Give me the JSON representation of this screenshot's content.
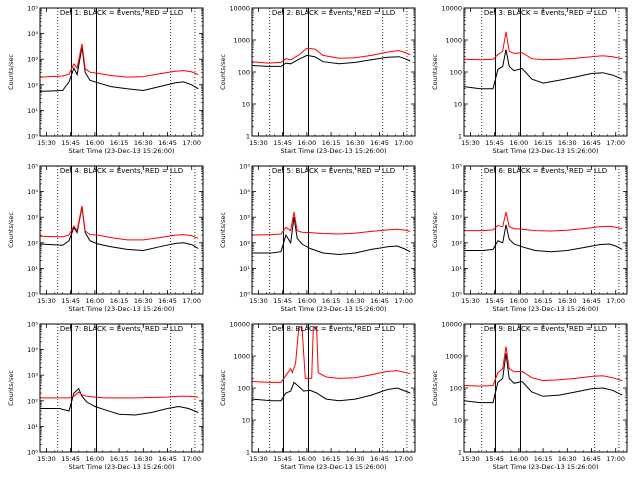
{
  "figure": {
    "xlabel": "Start Time (23-Dec-13 15:26:00)",
    "ylabel": "Counts/sec",
    "x_tick_labels": [
      "15:30",
      "15:45",
      "16:00",
      "16:15",
      "16:30",
      "16:45",
      "17:00"
    ],
    "x_tick_minutes": [
      30,
      45,
      60,
      75,
      90,
      105,
      120
    ],
    "x_range_minutes": [
      26,
      127
    ],
    "marker_lines_minutes": {
      "dotted": [
        37,
        107,
        122
      ],
      "solid": [
        45.5,
        61
      ]
    },
    "colors": {
      "events": "#000000",
      "lld": "#ff0000"
    }
  },
  "chart_data": [
    {
      "type": "line",
      "title": "Det 1: BLACK = Events, RED = LLD",
      "xlabel": "Start Time (23-Dec-13 15:26:00)",
      "ylabel": "Counts/sec",
      "y_scale": "log",
      "ylim": [
        1,
        100000
      ],
      "y_tick_labels": [
        "10⁰",
        "10¹",
        "10²",
        "10³",
        "10⁴",
        "10⁵"
      ],
      "series": [
        {
          "name": "Events",
          "color": "#000000",
          "x": [
            26,
            40,
            44,
            47,
            49,
            52,
            54,
            57,
            62,
            70,
            80,
            90,
            100,
            110,
            115,
            120,
            124
          ],
          "y": [
            55,
            60,
            130,
            450,
            250,
            3000,
            300,
            150,
            120,
            85,
            70,
            60,
            85,
            120,
            130,
            100,
            70
          ]
        },
        {
          "name": "LLD",
          "color": "#ff0000",
          "x": [
            26,
            40,
            44,
            47,
            49,
            52,
            54,
            57,
            62,
            70,
            80,
            90,
            100,
            110,
            115,
            120,
            124
          ],
          "y": [
            200,
            220,
            260,
            650,
            450,
            4000,
            420,
            310,
            280,
            230,
            200,
            210,
            270,
            340,
            360,
            320,
            250
          ]
        }
      ]
    },
    {
      "type": "line",
      "title": "Det 2: BLACK = Events, RED = LLD",
      "xlabel": "Start Time (23-Dec-13 15:26:00)",
      "ylabel": "Counts/sec",
      "y_scale": "log",
      "ylim": [
        1,
        10000
      ],
      "y_tick_labels": [
        "1",
        "10",
        "100",
        "1000",
        "10000"
      ],
      "series": [
        {
          "name": "Events",
          "color": "#000000",
          "x": [
            26,
            36,
            44,
            47,
            50,
            55,
            60,
            65,
            70,
            80,
            90,
            100,
            110,
            117,
            120,
            124
          ],
          "y": [
            160,
            150,
            150,
            190,
            180,
            250,
            330,
            300,
            210,
            180,
            200,
            240,
            290,
            300,
            270,
            220
          ]
        },
        {
          "name": "LLD",
          "color": "#ff0000",
          "x": [
            26,
            36,
            44,
            47,
            50,
            55,
            60,
            65,
            70,
            80,
            90,
            100,
            110,
            117,
            120,
            124
          ],
          "y": [
            210,
            190,
            200,
            260,
            240,
            340,
            550,
            520,
            330,
            270,
            280,
            330,
            420,
            470,
            420,
            350
          ]
        }
      ]
    },
    {
      "type": "line",
      "title": "Det 3: BLACK = Events, RED = LLD",
      "xlabel": "Start Time (23-Dec-13 15:26:00)",
      "ylabel": "Counts/sec",
      "y_scale": "log",
      "ylim": [
        1,
        10000
      ],
      "y_tick_labels": [
        "1",
        "10",
        "100",
        "1000",
        "10000"
      ],
      "series": [
        {
          "name": "Events",
          "color": "#000000",
          "x": [
            26,
            36,
            44,
            47,
            50,
            52,
            54,
            57,
            62,
            68,
            75,
            85,
            95,
            105,
            112,
            118,
            124
          ],
          "y": [
            35,
            30,
            30,
            120,
            150,
            500,
            150,
            110,
            130,
            60,
            45,
            55,
            70,
            90,
            95,
            80,
            60
          ]
        },
        {
          "name": "LLD",
          "color": "#ff0000",
          "x": [
            26,
            36,
            44,
            47,
            50,
            52,
            54,
            57,
            62,
            68,
            75,
            85,
            95,
            105,
            112,
            118,
            124
          ],
          "y": [
            250,
            240,
            250,
            350,
            450,
            1800,
            450,
            380,
            400,
            260,
            240,
            250,
            270,
            300,
            320,
            300,
            260
          ]
        }
      ]
    },
    {
      "type": "line",
      "title": "Det 4: BLACK = Events, RED = LLD",
      "xlabel": "Start Time (23-Dec-13 15:26:00)",
      "ylabel": "Counts/sec",
      "y_scale": "log",
      "ylim": [
        1,
        100000
      ],
      "y_tick_labels": [
        "10⁰",
        "10¹",
        "10²",
        "10³",
        "10⁴",
        "10⁵"
      ],
      "series": [
        {
          "name": "Events",
          "color": "#000000",
          "x": [
            26,
            40,
            44,
            47,
            49,
            52,
            54,
            57,
            62,
            70,
            80,
            90,
            100,
            110,
            115,
            120,
            124
          ],
          "y": [
            90,
            80,
            120,
            400,
            250,
            2500,
            250,
            120,
            90,
            70,
            55,
            50,
            70,
            95,
            100,
            85,
            60
          ]
        },
        {
          "name": "LLD",
          "color": "#ff0000",
          "x": [
            26,
            40,
            44,
            47,
            49,
            52,
            54,
            57,
            62,
            70,
            80,
            90,
            100,
            110,
            115,
            120,
            124
          ],
          "y": [
            180,
            170,
            200,
            450,
            300,
            2800,
            290,
            210,
            200,
            160,
            130,
            130,
            160,
            200,
            210,
            190,
            150
          ]
        }
      ]
    },
    {
      "type": "line",
      "title": "Det 5: BLACK = Events, RED = LLD",
      "xlabel": "Start Time (23-Dec-13 15:26:00)",
      "ylabel": "Counts/sec",
      "y_scale": "log",
      "ylim": [
        1,
        100000
      ],
      "y_tick_labels": [
        "10⁰",
        "10¹",
        "10²",
        "10³",
        "10⁴",
        "10⁵"
      ],
      "series": [
        {
          "name": "Events",
          "color": "#000000",
          "x": [
            26,
            38,
            44,
            47,
            50,
            52,
            54,
            57,
            62,
            70,
            80,
            90,
            100,
            110,
            116,
            120,
            124
          ],
          "y": [
            40,
            40,
            45,
            200,
            100,
            1000,
            150,
            90,
            60,
            40,
            35,
            40,
            55,
            70,
            75,
            60,
            45
          ]
        },
        {
          "name": "LLD",
          "color": "#ff0000",
          "x": [
            26,
            38,
            44,
            47,
            50,
            52,
            54,
            57,
            62,
            70,
            80,
            90,
            100,
            110,
            116,
            120,
            124
          ],
          "y": [
            200,
            210,
            220,
            400,
            300,
            1600,
            300,
            260,
            250,
            230,
            220,
            240,
            280,
            320,
            340,
            320,
            280
          ]
        }
      ]
    },
    {
      "type": "line",
      "title": "Det 6: BLACK = Events, RED = LLD",
      "xlabel": "Start Time (23-Dec-13 15:26:00)",
      "ylabel": "Counts/sec",
      "y_scale": "log",
      "ylim": [
        1,
        100000
      ],
      "y_tick_labels": [
        "10⁰",
        "10¹",
        "10²",
        "10³",
        "10⁴",
        "10⁵"
      ],
      "series": [
        {
          "name": "Events",
          "color": "#000000",
          "x": [
            26,
            38,
            44,
            47,
            50,
            52,
            54,
            57,
            62,
            70,
            80,
            90,
            100,
            110,
            116,
            120,
            124
          ],
          "y": [
            50,
            50,
            55,
            120,
            100,
            500,
            140,
            90,
            70,
            50,
            45,
            50,
            65,
            85,
            90,
            75,
            55
          ]
        },
        {
          "name": "LLD",
          "color": "#ff0000",
          "x": [
            26,
            38,
            44,
            47,
            50,
            52,
            54,
            57,
            62,
            70,
            80,
            90,
            100,
            110,
            116,
            120,
            124
          ],
          "y": [
            300,
            300,
            320,
            480,
            420,
            1600,
            430,
            360,
            340,
            300,
            290,
            310,
            360,
            420,
            440,
            410,
            350
          ]
        }
      ]
    },
    {
      "type": "line",
      "title": "Det 7: BLACK = Events, RED = LLD",
      "xlabel": "Start Time (23-Dec-13 15:26:00)",
      "ylabel": "Counts/sec",
      "y_scale": "log",
      "ylim": [
        1,
        100000
      ],
      "y_tick_labels": [
        "10⁰",
        "10¹",
        "10²",
        "10³",
        "10⁴",
        "10⁵"
      ],
      "series": [
        {
          "name": "Events",
          "color": "#000000",
          "x": [
            26,
            38,
            44,
            47,
            50,
            52,
            55,
            60,
            66,
            75,
            85,
            95,
            105,
            112,
            118,
            124
          ],
          "y": [
            50,
            50,
            40,
            200,
            300,
            150,
            90,
            60,
            45,
            30,
            28,
            35,
            50,
            60,
            50,
            35
          ]
        },
        {
          "name": "LLD",
          "color": "#ff0000",
          "x": [
            26,
            38,
            44,
            47,
            50,
            52,
            55,
            60,
            66,
            75,
            85,
            95,
            105,
            112,
            118,
            124
          ],
          "y": [
            130,
            130,
            130,
            150,
            220,
            170,
            150,
            140,
            130,
            130,
            130,
            135,
            140,
            150,
            150,
            140
          ]
        }
      ]
    },
    {
      "type": "line",
      "title": "Det 8: BLACK = Events, RED = LLD",
      "xlabel": "Start Time (23-Dec-13 15:26:00)",
      "ylabel": "Counts/sec",
      "y_scale": "log",
      "ylim": [
        1,
        10000
      ],
      "y_tick_labels": [
        "1",
        "10",
        "100",
        "1000",
        "10000"
      ],
      "series": [
        {
          "name": "Events",
          "color": "#000000",
          "x": [
            26,
            38,
            44,
            47,
            50,
            52,
            56,
            58,
            62,
            66,
            72,
            80,
            90,
            100,
            110,
            116,
            124
          ],
          "y": [
            45,
            40,
            40,
            70,
            80,
            150,
            100,
            80,
            85,
            70,
            45,
            40,
            45,
            60,
            90,
            100,
            70
          ]
        },
        {
          "name": "LLD",
          "color": "#ff0000",
          "x": [
            26,
            38,
            44,
            47,
            50,
            51,
            53,
            55,
            56,
            57,
            59,
            61,
            62,
            63,
            64,
            66,
            67,
            72,
            80,
            90,
            100,
            110,
            116,
            124
          ],
          "y": [
            160,
            150,
            150,
            250,
            400,
            300,
            600,
            8000,
            8000,
            8000,
            200,
            200,
            200,
            200,
            8000,
            8000,
            300,
            220,
            200,
            210,
            260,
            330,
            350,
            280
          ]
        }
      ]
    },
    {
      "type": "line",
      "title": "Det 9: BLACK = Events, RED = LLD",
      "xlabel": "Start Time (23-Dec-13 15:26:00)",
      "ylabel": "Counts/sec",
      "y_scale": "log",
      "ylim": [
        1,
        10000
      ],
      "y_tick_labels": [
        "1",
        "10",
        "100",
        "1000",
        "10000"
      ],
      "series": [
        {
          "name": "Events",
          "color": "#000000",
          "x": [
            26,
            36,
            44,
            47,
            50,
            52,
            54,
            57,
            62,
            68,
            75,
            85,
            95,
            105,
            112,
            118,
            124
          ],
          "y": [
            40,
            35,
            35,
            150,
            200,
            1200,
            200,
            140,
            160,
            75,
            55,
            60,
            75,
            95,
            100,
            85,
            60
          ]
        },
        {
          "name": "LLD",
          "color": "#ff0000",
          "x": [
            26,
            36,
            44,
            47,
            50,
            52,
            54,
            57,
            62,
            68,
            75,
            85,
            95,
            105,
            112,
            118,
            124
          ],
          "y": [
            120,
            115,
            120,
            300,
            400,
            2000,
            400,
            320,
            330,
            210,
            170,
            180,
            200,
            230,
            240,
            210,
            170
          ]
        }
      ]
    }
  ]
}
